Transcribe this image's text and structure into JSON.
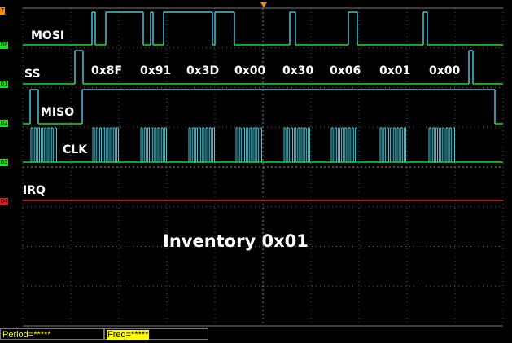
{
  "channels": [
    {
      "marker": "D0",
      "label": "MOSI",
      "color": "#18e01a"
    },
    {
      "marker": "D1",
      "label": "SS",
      "color": "#18e01a"
    },
    {
      "marker": "D2",
      "label": "MISO",
      "color": "#18e01a"
    },
    {
      "marker": "D3",
      "label": "CLK",
      "color": "#18e01a"
    },
    {
      "marker": "D4",
      "label": "IRQ",
      "color": "#e02020"
    }
  ],
  "trigger_marker": "T",
  "bytes": [
    "0x8F",
    "0x91",
    "0x3D",
    "0x00",
    "0x30",
    "0x06",
    "0x01",
    "0x00"
  ],
  "caption": "Inventory 0x01",
  "status": {
    "period": "Period=*****",
    "freq": "Freq=*****"
  },
  "colors": {
    "grid": "#5a5a5a",
    "trace_high": "#43c6d8",
    "trace_low": "#18e01a",
    "irq": "#e02020",
    "trigger": "#ff8c00",
    "freq_bg": "#ffff00"
  }
}
